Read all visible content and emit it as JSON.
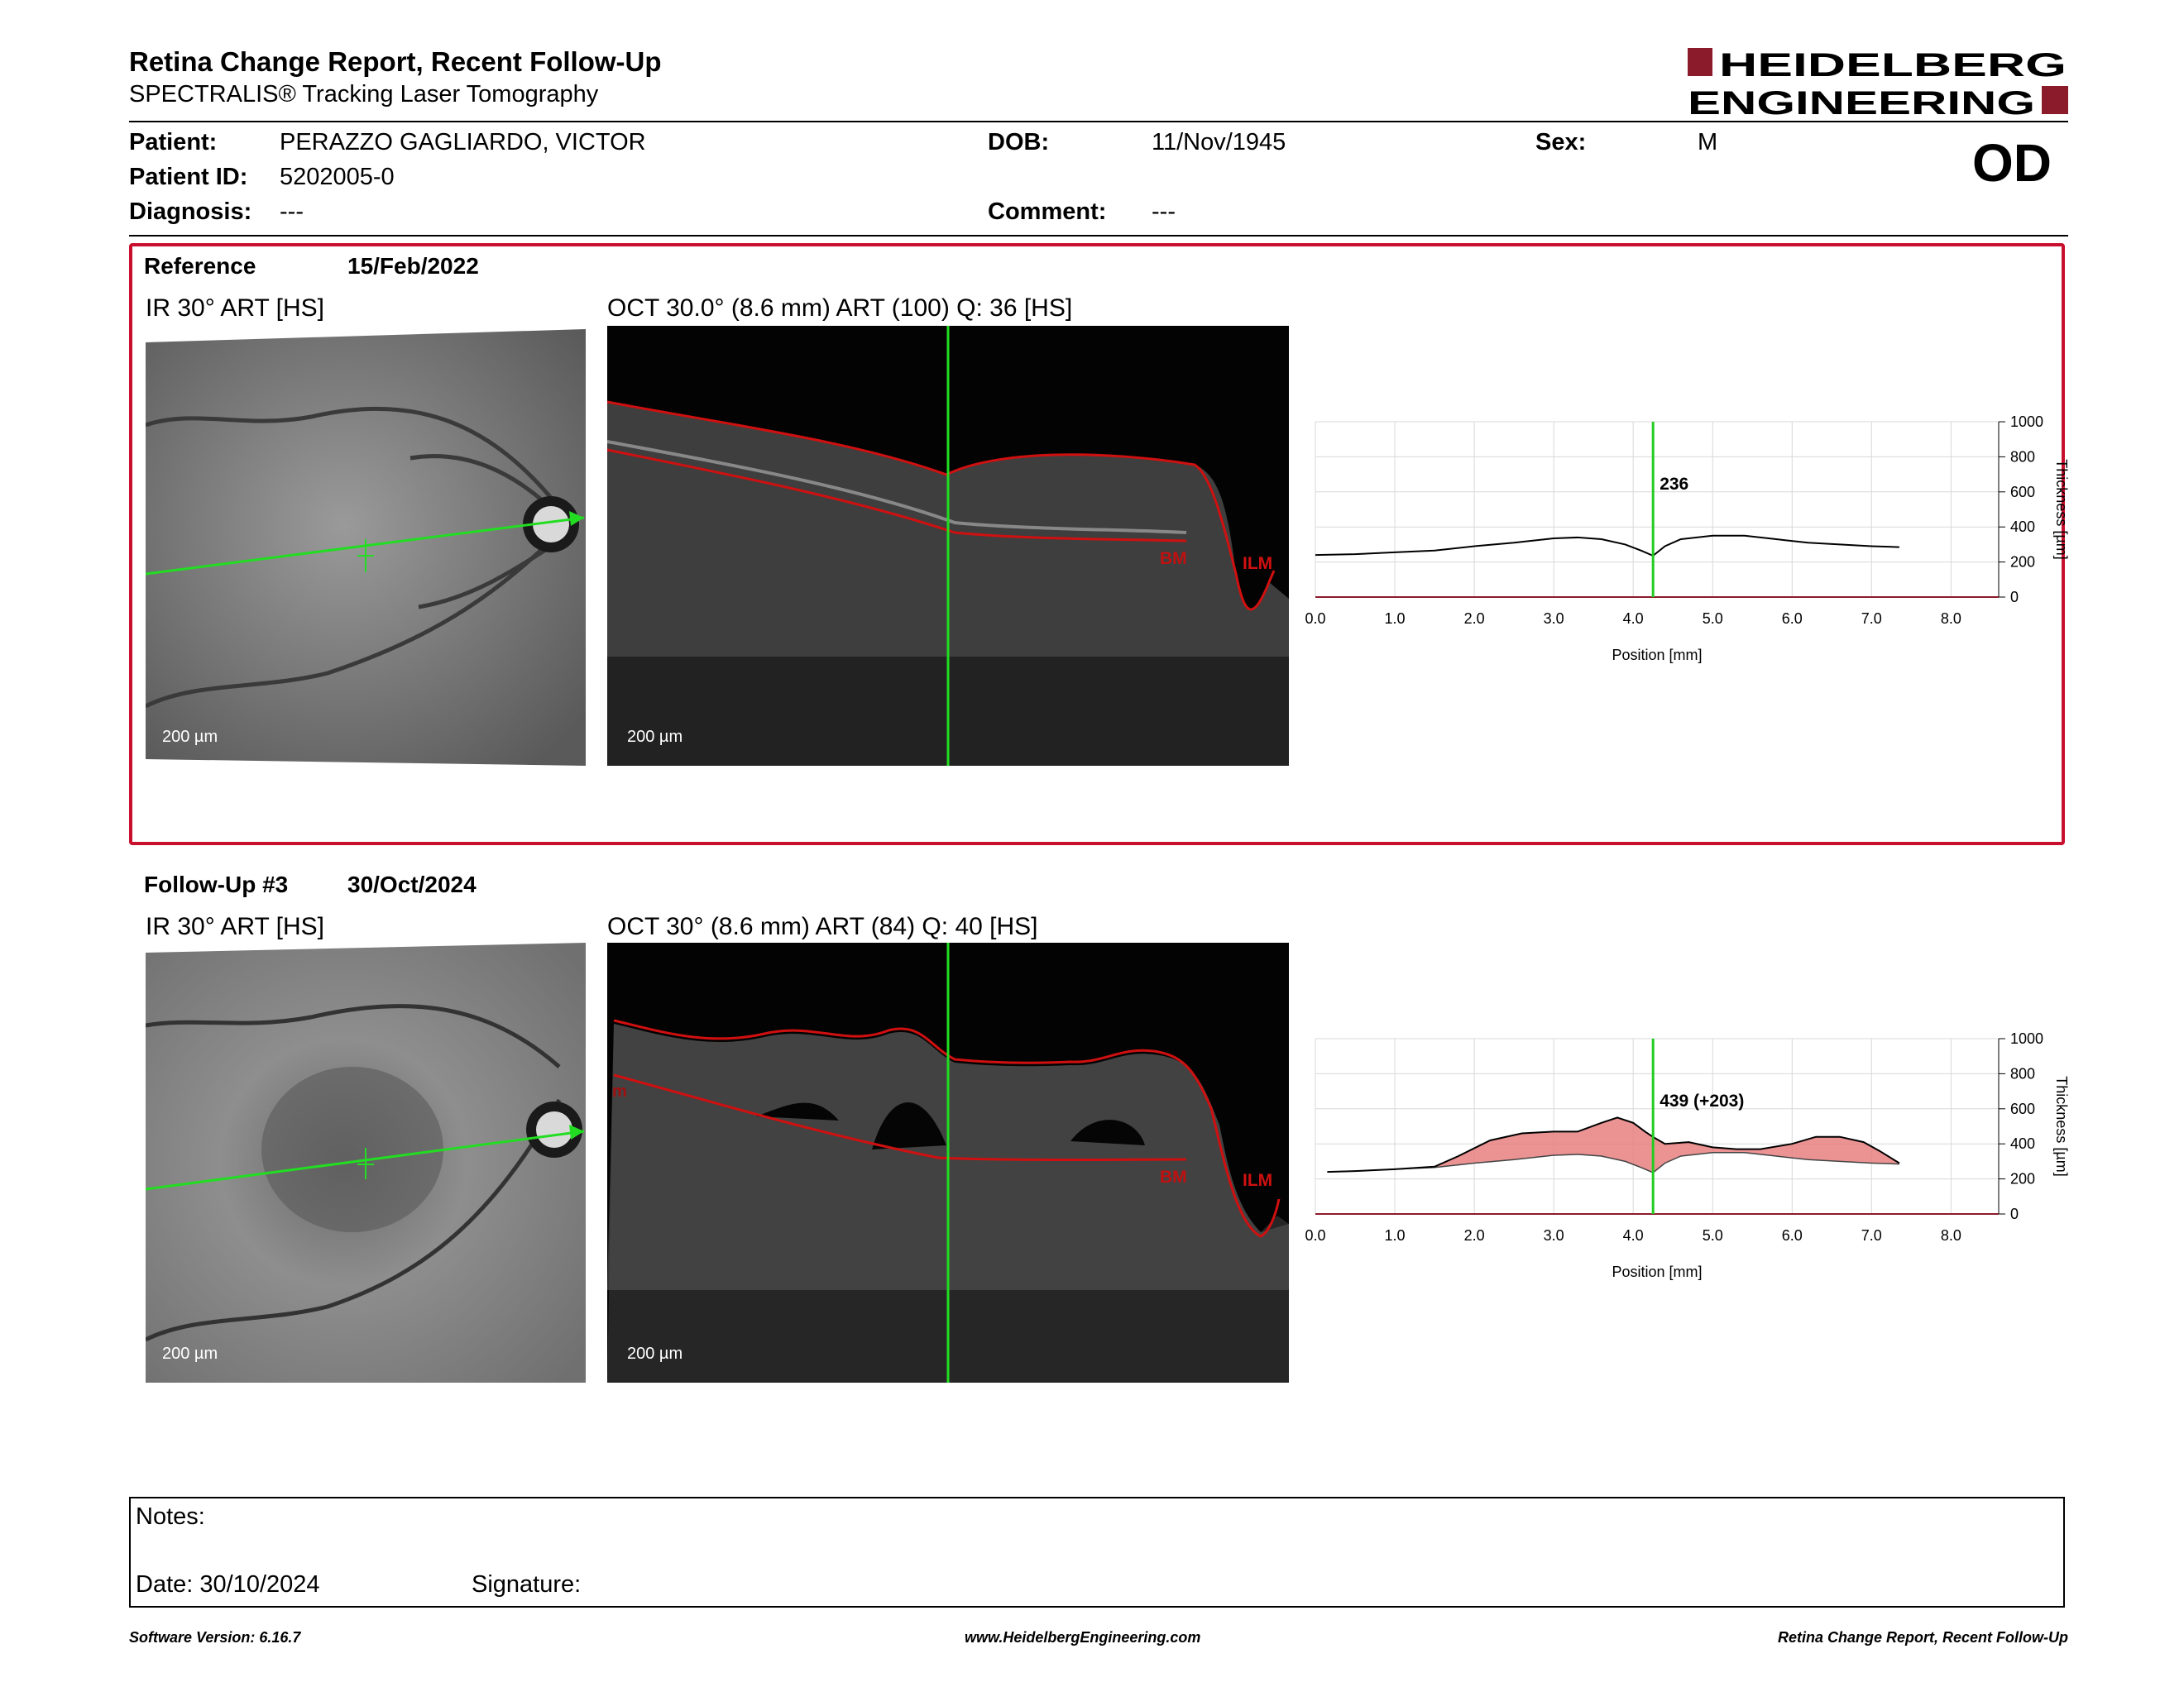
{
  "header": {
    "title": "Retina Change Report, Recent Follow-Up",
    "subtitle": "SPECTRALIS® Tracking Laser Tomography",
    "logo_line1": "HEIDELBERG",
    "logo_line2": "ENGINEERING",
    "brand_color": "#8b1a2b"
  },
  "patient": {
    "patient_label": "Patient:",
    "patient_name": "PERAZZO GAGLIARDO, VICTOR",
    "id_label": "Patient ID:",
    "id_value": "5202005-0",
    "diagnosis_label": "Diagnosis:",
    "diagnosis_value": "---",
    "dob_label": "DOB:",
    "dob_value": "11/Nov/1945",
    "comment_label": "Comment:",
    "comment_value": "---",
    "sex_label": "Sex:",
    "sex_value": "M",
    "eye": "OD"
  },
  "reference": {
    "label": "Reference",
    "date": "15/Feb/2022",
    "ir_caption": "IR 30° ART [HS]",
    "oct_caption": "OCT 30.0° (8.6 mm) ART (100) Q: 36 [HS]",
    "scale_ir": "200 µm",
    "scale_oct": "200 µm",
    "bm_label": "BM",
    "ilm_label": "ILM",
    "box_color": "#c8102e"
  },
  "followup": {
    "label": "Follow-Up #3",
    "date": "30/Oct/2024",
    "ir_caption": "IR 30° ART [HS]",
    "oct_caption": "OCT 30° (8.6 mm) ART (84) Q: 40 [HS]",
    "scale_ir": "200 µm",
    "scale_oct": "200 µm",
    "bm_label": "BM",
    "ilm_label": "ILM"
  },
  "chart_data": [
    {
      "type": "line",
      "xlabel": "Position [mm]",
      "ylabel": "Thickness [µm]",
      "xlim": [
        0,
        8.6
      ],
      "ylim": [
        0,
        1000
      ],
      "x_ticks": [
        "0.0",
        "1.0",
        "2.0",
        "3.0",
        "4.0",
        "5.0",
        "6.0",
        "7.0",
        "8.0"
      ],
      "y_ticks": [
        "0",
        "200",
        "400",
        "600",
        "800",
        "1000"
      ],
      "cursor_x": 4.25,
      "cursor_label": "236",
      "series": [
        {
          "x": [
            0,
            0.5,
            1,
            1.5,
            2,
            2.5,
            3,
            3.3,
            3.6,
            3.9,
            4.1,
            4.25,
            4.4,
            4.6,
            5,
            5.4,
            5.8,
            6.2,
            6.6,
            7,
            7.35
          ],
          "y": [
            240,
            245,
            255,
            265,
            290,
            310,
            335,
            340,
            330,
            300,
            265,
            236,
            290,
            330,
            350,
            350,
            330,
            310,
            300,
            290,
            285
          ]
        }
      ]
    },
    {
      "type": "area",
      "xlabel": "Position [mm]",
      "ylabel": "Thickness [µm]",
      "xlim": [
        0,
        8.6
      ],
      "ylim": [
        0,
        1000
      ],
      "x_ticks": [
        "0.0",
        "1.0",
        "2.0",
        "3.0",
        "4.0",
        "5.0",
        "6.0",
        "7.0",
        "8.0"
      ],
      "y_ticks": [
        "0",
        "200",
        "400",
        "600",
        "800",
        "1000"
      ],
      "cursor_x": 4.25,
      "cursor_label": "439 (+203)",
      "fill_color": "#e88080",
      "series": [
        {
          "name": "Follow-Up #3",
          "x": [
            0.15,
            0.5,
            1,
            1.5,
            1.8,
            2.2,
            2.6,
            3,
            3.3,
            3.6,
            3.8,
            4,
            4.15,
            4.25,
            4.4,
            4.7,
            5,
            5.3,
            5.6,
            6,
            6.3,
            6.6,
            6.9,
            7.1,
            7.35
          ],
          "y": [
            240,
            245,
            255,
            270,
            330,
            420,
            460,
            470,
            470,
            520,
            550,
            520,
            470,
            439,
            400,
            410,
            380,
            370,
            370,
            400,
            440,
            440,
            410,
            360,
            290
          ]
        },
        {
          "name": "Reference",
          "x": [
            0.15,
            0.5,
            1,
            1.5,
            2,
            2.5,
            3,
            3.3,
            3.6,
            3.9,
            4.1,
            4.25,
            4.4,
            4.6,
            5,
            5.4,
            5.8,
            6.2,
            6.6,
            7,
            7.35
          ],
          "y": [
            240,
            245,
            255,
            265,
            290,
            310,
            335,
            340,
            330,
            300,
            265,
            236,
            290,
            330,
            350,
            350,
            330,
            310,
            300,
            290,
            285
          ]
        }
      ]
    }
  ],
  "notes": {
    "notes_label": "Notes:",
    "date_label": "Date: 30/10/2024",
    "signature_label": "Signature:"
  },
  "footer": {
    "software": "Software Version: 6.16.7",
    "website": "www.HeidelbergEngineering.com",
    "report": "Retina Change Report, Recent Follow-Up"
  }
}
